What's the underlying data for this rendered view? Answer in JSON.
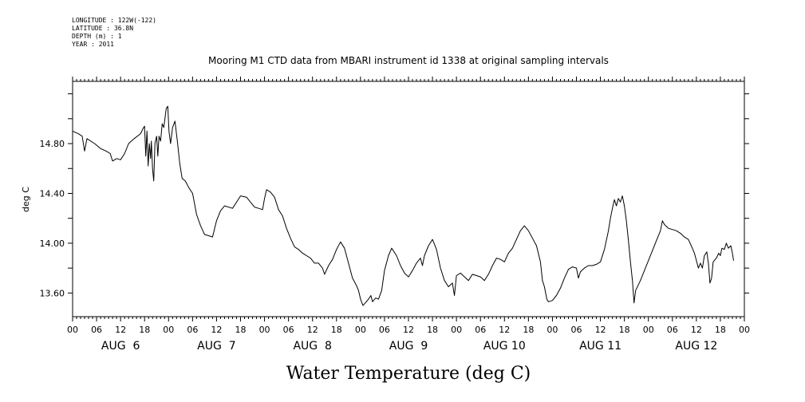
{
  "meta_lines": [
    "LONGITUDE : 122W(-122)",
    "LATITUDE : 36.8N",
    "DEPTH (m) : 1",
    "YEAR : 2011"
  ],
  "chart_data": {
    "type": "line",
    "title": "Mooring M1 CTD data from MBARI instrument id 1338 at original sampling intervals",
    "xlabel": "Water Temperature (deg C)",
    "ylabel": "deg C",
    "ylim": [
      13.41,
      15.3
    ],
    "xlim_hours": [
      0,
      168
    ],
    "y_ticks": [
      "13.60",
      "14.00",
      "14.40",
      "14.80"
    ],
    "x_hour_ticks": [
      "00",
      "06",
      "12",
      "18",
      "00",
      "06",
      "12",
      "18",
      "00",
      "06",
      "12",
      "18",
      "00",
      "06",
      "12",
      "18",
      "00",
      "06",
      "12",
      "18",
      "00",
      "06",
      "12",
      "18",
      "00",
      "06",
      "12",
      "18",
      "00"
    ],
    "day_labels": [
      "AUG  6",
      "AUG  7",
      "AUG  8",
      "AUG  9",
      "AUG 10",
      "AUG 11",
      "AUG 12"
    ],
    "series": [
      {
        "color": "#000000",
        "points": [
          [
            0,
            14.9
          ],
          [
            1.4,
            14.88
          ],
          [
            2.4,
            14.86
          ],
          [
            3,
            14.74
          ],
          [
            3.6,
            14.84
          ],
          [
            5.5,
            14.8
          ],
          [
            7,
            14.76
          ],
          [
            8.4,
            14.74
          ],
          [
            9.4,
            14.72
          ],
          [
            10,
            14.66
          ],
          [
            11,
            14.68
          ],
          [
            12,
            14.67
          ],
          [
            13,
            14.72
          ],
          [
            14,
            14.8
          ],
          [
            15.4,
            14.84
          ],
          [
            17,
            14.88
          ],
          [
            17.6,
            14.92
          ],
          [
            18,
            14.94
          ],
          [
            18.3,
            14.7
          ],
          [
            18.6,
            14.9
          ],
          [
            18.9,
            14.62
          ],
          [
            19.2,
            14.8
          ],
          [
            19.5,
            14.68
          ],
          [
            19.7,
            14.82
          ],
          [
            20,
            14.6
          ],
          [
            20.3,
            14.5
          ],
          [
            20.6,
            14.8
          ],
          [
            21,
            14.86
          ],
          [
            21.3,
            14.7
          ],
          [
            21.6,
            14.86
          ],
          [
            22,
            14.82
          ],
          [
            22.4,
            14.96
          ],
          [
            22.8,
            14.93
          ],
          [
            23.4,
            15.08
          ],
          [
            23.8,
            15.1
          ],
          [
            24.1,
            14.9
          ],
          [
            24.5,
            14.8
          ],
          [
            25,
            14.93
          ],
          [
            25.6,
            14.98
          ],
          [
            26.2,
            14.82
          ],
          [
            26.8,
            14.64
          ],
          [
            27.4,
            14.52
          ],
          [
            28.2,
            14.5
          ],
          [
            29,
            14.45
          ],
          [
            30,
            14.4
          ],
          [
            31,
            14.23
          ],
          [
            32,
            14.14
          ],
          [
            33,
            14.07
          ],
          [
            34,
            14.06
          ],
          [
            35,
            14.05
          ],
          [
            36,
            14.18
          ],
          [
            37,
            14.26
          ],
          [
            38,
            14.3
          ],
          [
            40,
            14.28
          ],
          [
            41,
            14.33
          ],
          [
            42,
            14.38
          ],
          [
            43.5,
            14.37
          ],
          [
            44.5,
            14.33
          ],
          [
            45.5,
            14.29
          ],
          [
            46.5,
            14.28
          ],
          [
            47.5,
            14.27
          ],
          [
            48,
            14.36
          ],
          [
            48.5,
            14.43
          ],
          [
            49.5,
            14.41
          ],
          [
            50.5,
            14.37
          ],
          [
            51.5,
            14.27
          ],
          [
            52.5,
            14.22
          ],
          [
            53.5,
            14.12
          ],
          [
            54.5,
            14.04
          ],
          [
            55.5,
            13.97
          ],
          [
            56.5,
            13.95
          ],
          [
            57.5,
            13.92
          ],
          [
            58.5,
            13.9
          ],
          [
            59.5,
            13.88
          ],
          [
            60.5,
            13.84
          ],
          [
            61.5,
            13.84
          ],
          [
            62.5,
            13.8
          ],
          [
            63,
            13.75
          ],
          [
            64,
            13.82
          ],
          [
            65,
            13.87
          ],
          [
            66,
            13.95
          ],
          [
            67,
            14.01
          ],
          [
            68,
            13.96
          ],
          [
            69,
            13.84
          ],
          [
            70,
            13.72
          ],
          [
            71,
            13.66
          ],
          [
            71.5,
            13.62
          ],
          [
            72,
            13.55
          ],
          [
            72.6,
            13.5
          ],
          [
            73.2,
            13.52
          ],
          [
            74,
            13.55
          ],
          [
            74.6,
            13.58
          ],
          [
            75,
            13.53
          ],
          [
            75.8,
            13.56
          ],
          [
            76.5,
            13.55
          ],
          [
            77.3,
            13.62
          ],
          [
            78,
            13.78
          ],
          [
            79,
            13.9
          ],
          [
            79.8,
            13.96
          ],
          [
            81,
            13.9
          ],
          [
            82,
            13.82
          ],
          [
            83,
            13.76
          ],
          [
            84,
            13.73
          ],
          [
            85,
            13.78
          ],
          [
            86,
            13.84
          ],
          [
            87,
            13.88
          ],
          [
            87.5,
            13.82
          ],
          [
            88,
            13.9
          ],
          [
            89,
            13.98
          ],
          [
            90,
            14.03
          ],
          [
            91,
            13.95
          ],
          [
            92,
            13.8
          ],
          [
            93,
            13.7
          ],
          [
            94,
            13.65
          ],
          [
            95,
            13.68
          ],
          [
            95.5,
            13.58
          ],
          [
            96,
            13.74
          ],
          [
            97,
            13.76
          ],
          [
            98,
            13.73
          ],
          [
            99,
            13.7
          ],
          [
            100,
            13.75
          ],
          [
            101,
            13.74
          ],
          [
            102,
            13.73
          ],
          [
            103,
            13.7
          ],
          [
            104,
            13.75
          ],
          [
            105,
            13.82
          ],
          [
            106,
            13.88
          ],
          [
            107,
            13.87
          ],
          [
            108,
            13.85
          ],
          [
            109,
            13.92
          ],
          [
            110,
            13.96
          ],
          [
            111,
            14.03
          ],
          [
            112,
            14.1
          ],
          [
            113,
            14.14
          ],
          [
            114,
            14.1
          ],
          [
            115,
            14.04
          ],
          [
            116,
            13.98
          ],
          [
            117,
            13.85
          ],
          [
            117.5,
            13.7
          ],
          [
            118,
            13.65
          ],
          [
            118.6,
            13.55
          ],
          [
            119,
            13.53
          ],
          [
            120,
            13.54
          ],
          [
            121,
            13.58
          ],
          [
            122,
            13.64
          ],
          [
            123,
            13.72
          ],
          [
            124,
            13.79
          ],
          [
            125,
            13.81
          ],
          [
            126,
            13.8
          ],
          [
            126.5,
            13.72
          ],
          [
            127,
            13.77
          ],
          [
            128,
            13.8
          ],
          [
            129,
            13.82
          ],
          [
            130,
            13.82
          ],
          [
            131,
            13.83
          ],
          [
            132,
            13.85
          ],
          [
            133,
            13.95
          ],
          [
            134,
            14.1
          ],
          [
            134.5,
            14.2
          ],
          [
            135,
            14.28
          ],
          [
            135.5,
            14.35
          ],
          [
            136,
            14.3
          ],
          [
            136.5,
            14.36
          ],
          [
            137,
            14.33
          ],
          [
            137.5,
            14.38
          ],
          [
            138,
            14.3
          ],
          [
            138.5,
            14.18
          ],
          [
            139,
            14.02
          ],
          [
            139.5,
            13.85
          ],
          [
            140,
            13.7
          ],
          [
            140.4,
            13.52
          ],
          [
            140.8,
            13.62
          ],
          [
            142,
            13.7
          ],
          [
            143,
            13.78
          ],
          [
            144,
            13.86
          ],
          [
            145,
            13.94
          ],
          [
            146,
            14.02
          ],
          [
            147,
            14.1
          ],
          [
            147.5,
            14.18
          ],
          [
            148,
            14.15
          ],
          [
            149,
            14.12
          ],
          [
            150,
            14.11
          ],
          [
            151,
            14.1
          ],
          [
            152,
            14.08
          ],
          [
            153,
            14.05
          ],
          [
            154,
            14.03
          ],
          [
            155,
            13.96
          ],
          [
            155.5,
            13.92
          ],
          [
            156,
            13.86
          ],
          [
            156.5,
            13.8
          ],
          [
            157,
            13.84
          ],
          [
            157.5,
            13.8
          ],
          [
            158,
            13.9
          ],
          [
            158.6,
            13.93
          ],
          [
            159,
            13.84
          ],
          [
            159.4,
            13.68
          ],
          [
            159.8,
            13.72
          ],
          [
            160.2,
            13.85
          ],
          [
            161,
            13.88
          ],
          [
            161.6,
            13.92
          ],
          [
            162,
            13.9
          ],
          [
            162.4,
            13.96
          ],
          [
            163,
            13.95
          ],
          [
            163.5,
            14.0
          ],
          [
            164,
            13.96
          ],
          [
            164.6,
            13.98
          ],
          [
            165,
            13.92
          ],
          [
            165.3,
            13.86
          ]
        ]
      }
    ]
  }
}
